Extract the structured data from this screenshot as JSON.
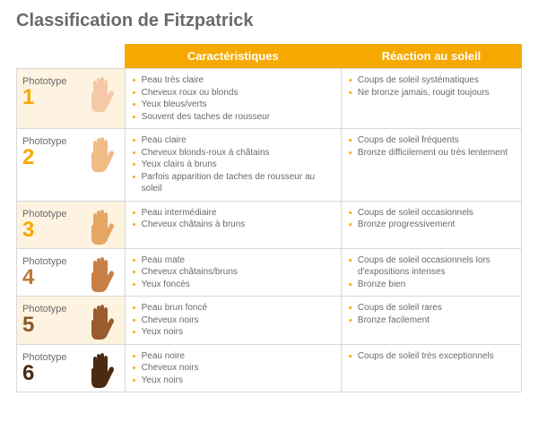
{
  "title": "Classification de Fitzpatrick",
  "headers": {
    "characteristics": "Caractéristiques",
    "reaction": "Réaction au soleil"
  },
  "phototype_label": "Phototype",
  "number_colors": [
    "#f6a900",
    "#f6a900",
    "#f6a900",
    "#b97a3a",
    "#8a5a2a",
    "#4a2a10"
  ],
  "hand_colors": [
    "#f5c9a8",
    "#f1bb86",
    "#e6a765",
    "#c77f43",
    "#9a5c2d",
    "#4a2a10"
  ],
  "row_bg": [
    "#fef3e0",
    "#ffffff",
    "#fef3e0",
    "#ffffff",
    "#fef3e0",
    "#ffffff"
  ],
  "rows": [
    {
      "num": "1",
      "char": [
        "Peau très claire",
        "Cheveux roux ou blonds",
        "Yeux bleus/verts",
        "Souvent des taches de rousseur"
      ],
      "react": [
        "Coups de soleil systématiques",
        "Ne bronze jamais, rougit toujours"
      ]
    },
    {
      "num": "2",
      "char": [
        "Peau claire",
        "Cheveux blonds-roux à châtains",
        "Yeux clairs à bruns",
        "Parfois apparition de taches de rousseur au soleil"
      ],
      "react": [
        "Coups de soleil fréquents",
        "Bronze difficilement ou très lentement"
      ]
    },
    {
      "num": "3",
      "char": [
        "Peau intermédiaire",
        "Cheveux châtains à bruns"
      ],
      "react": [
        "Coups de soleil occasionnels",
        "Bronze progressivement"
      ]
    },
    {
      "num": "4",
      "char": [
        "Peau mate",
        "Cheveux châtains/bruns",
        "Yeux foncés"
      ],
      "react": [
        "Coups de soleil occasionnels lors d'expositions intenses",
        "Bronze bien"
      ]
    },
    {
      "num": "5",
      "char": [
        "Peau brun foncé",
        "Cheveux noirs",
        "Yeux noirs"
      ],
      "react": [
        "Coups de soleil rares",
        "Bronze facilement"
      ]
    },
    {
      "num": "6",
      "char": [
        "Peau noire",
        "Cheveux noirs",
        "Yeux noirs"
      ],
      "react": [
        "Coups de soleil très exceptionnels"
      ]
    }
  ]
}
